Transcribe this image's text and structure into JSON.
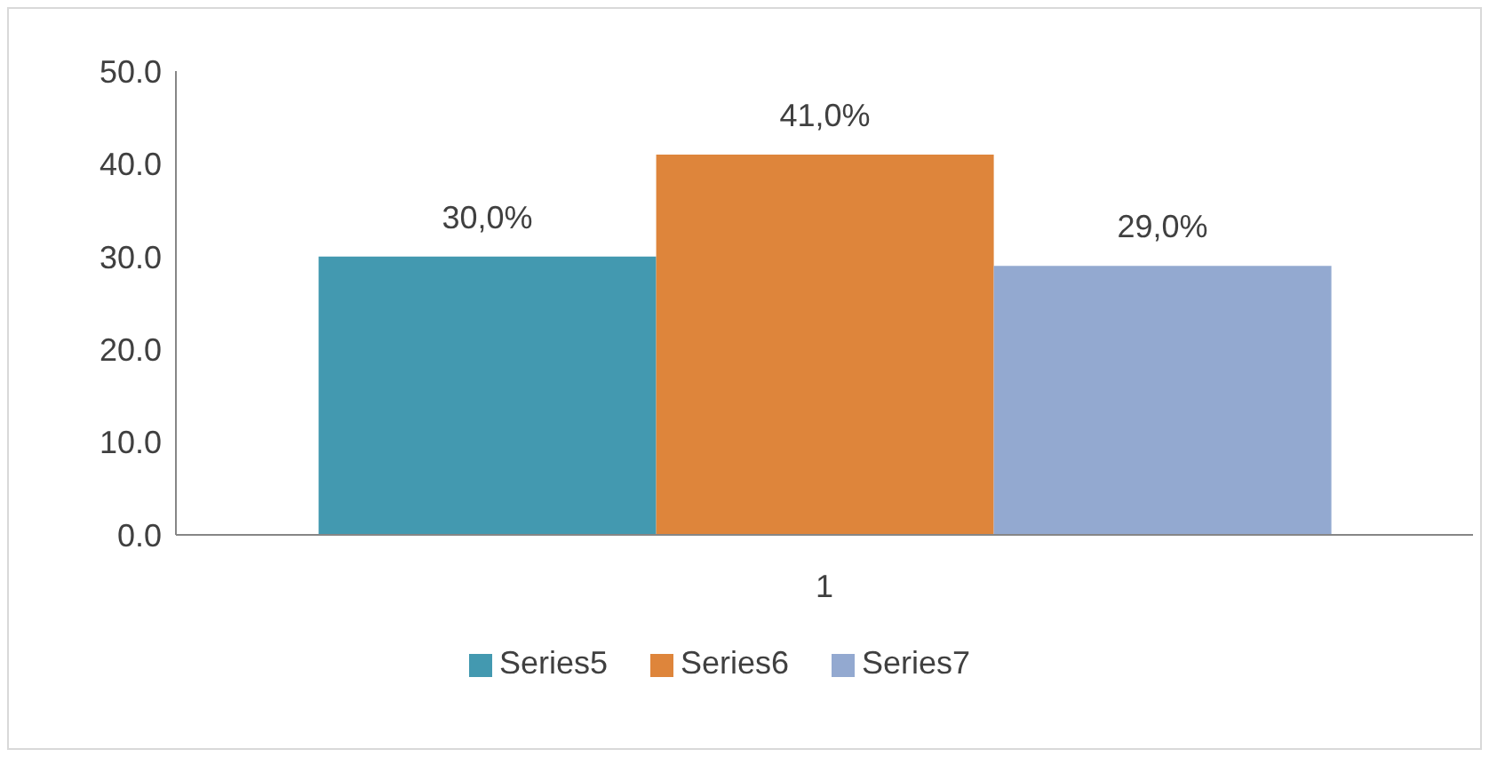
{
  "chart_data": {
    "type": "bar",
    "categories": [
      "1"
    ],
    "series": [
      {
        "name": "Series5",
        "color": "#4399b0",
        "values": [
          30
        ],
        "value_labels": [
          "30,0%"
        ]
      },
      {
        "name": "Series6",
        "color": "#de853b",
        "values": [
          41
        ],
        "value_labels": [
          "41,0%"
        ]
      },
      {
        "name": "Series7",
        "color": "#93a9d0",
        "values": [
          29
        ],
        "value_labels": [
          "29,0%"
        ]
      }
    ],
    "ylim": [
      0,
      50
    ],
    "yticks": [
      {
        "value": 0,
        "label": "0.0"
      },
      {
        "value": 10,
        "label": "10.0"
      },
      {
        "value": 20,
        "label": "20.0"
      },
      {
        "value": 30,
        "label": "30.0"
      },
      {
        "value": 40,
        "label": "40.0"
      },
      {
        "value": 50,
        "label": "50.0"
      }
    ],
    "grid": false,
    "legend": "bottom"
  }
}
